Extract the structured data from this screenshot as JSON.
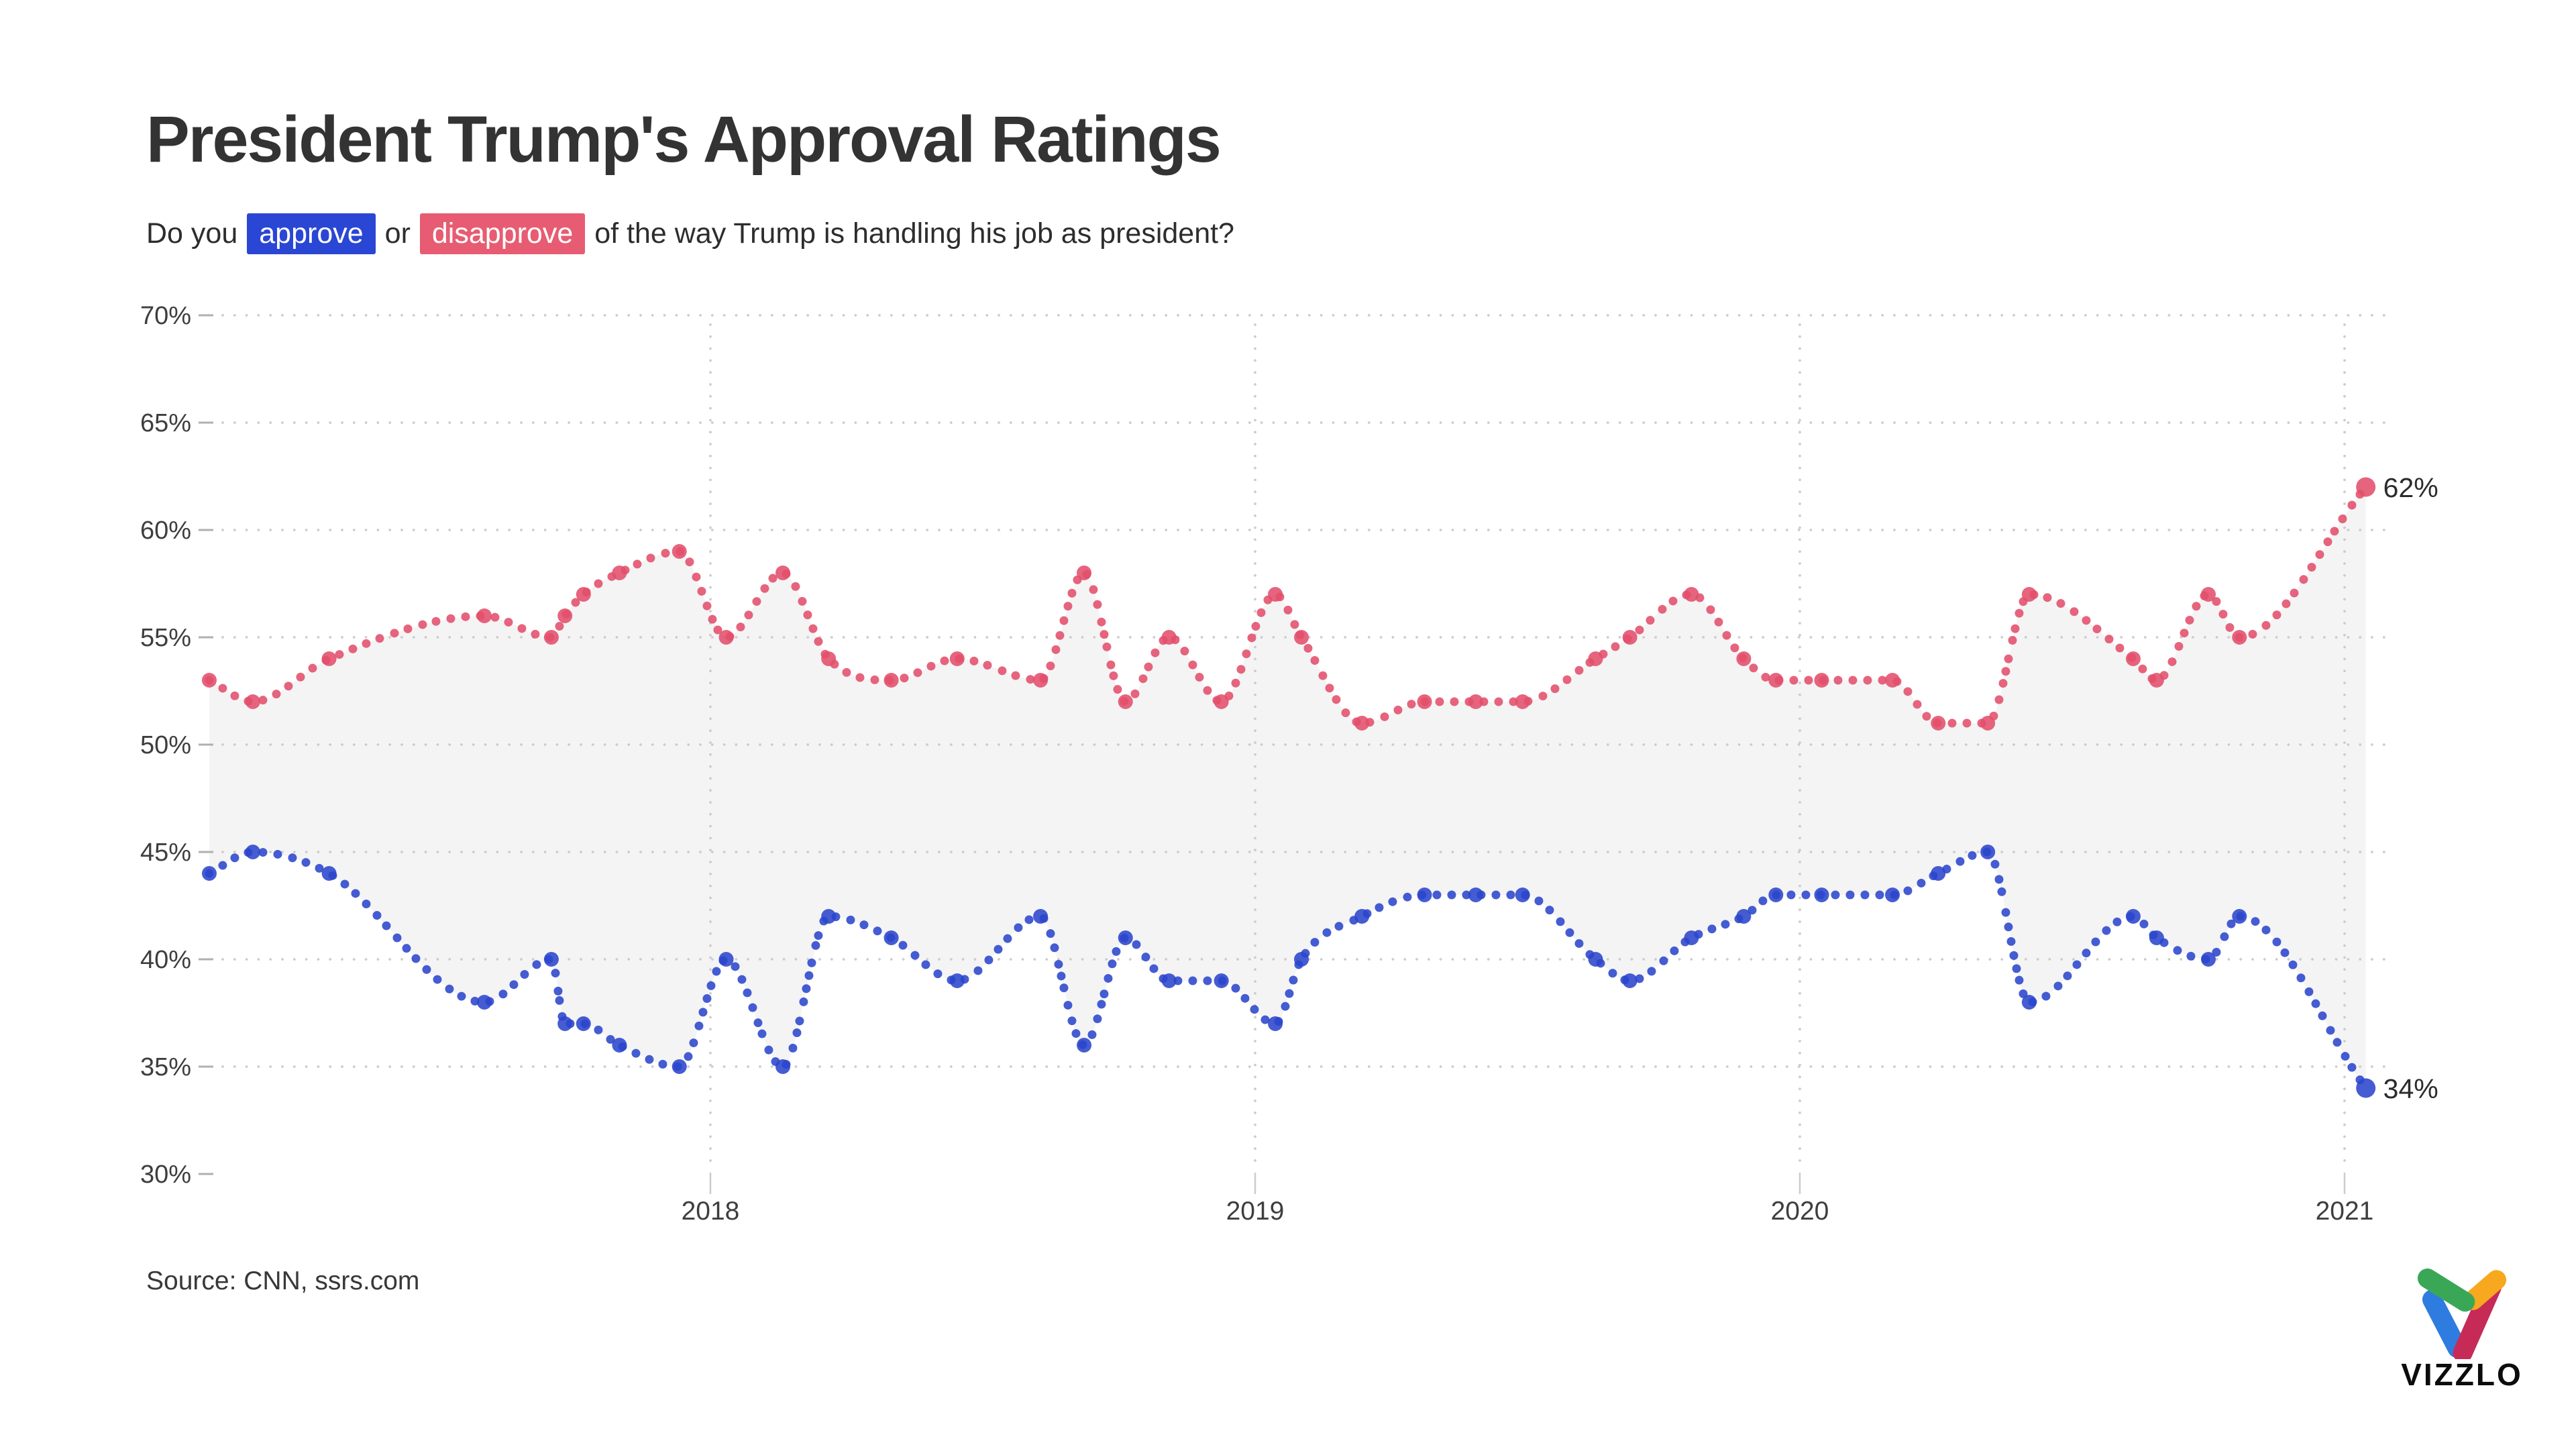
{
  "header": {
    "title": "President Trump's Approval Ratings",
    "subtitle": {
      "prefix": "Do you",
      "approve_word": "approve",
      "middle": "or",
      "disapprove_word": "disapprove",
      "suffix": "of the way Trump is handling his job as president?"
    }
  },
  "colors": {
    "approve": "#2b46cc",
    "disapprove": "#e24e6b",
    "approve_chip_bg": "#2a46d4",
    "disapprove_chip_bg": "#e75c72",
    "band_fill": "#f4f4f5",
    "grid_dot": "#cccccc",
    "tick_dash": "#b0b0b0",
    "axis_text": "#3e3e3e",
    "end_label_text": "#2b2b2b"
  },
  "chart_data": {
    "type": "line",
    "title": "President Trump's Approval Ratings",
    "subtitle": "Do you approve or disapprove of the way Trump is handling his job as president?",
    "style": "dotted-spline with filled band between series; larger dots mark actual polls",
    "x_unit": "decimal year (CNN/SSRS poll dates)",
    "x": [
      2017.08,
      2017.16,
      2017.3,
      2017.585,
      2017.708,
      2017.733,
      2017.767,
      2017.833,
      2017.943,
      2018.029,
      2018.133,
      2018.217,
      2018.332,
      2018.453,
      2018.606,
      2018.686,
      2018.762,
      2018.842,
      2018.938,
      2019.037,
      2019.085,
      2019.196,
      2019.311,
      2019.405,
      2019.491,
      2019.625,
      2019.688,
      2019.801,
      2019.897,
      2019.956,
      2020.04,
      2020.17,
      2020.254,
      2020.345,
      2020.421,
      2020.612,
      2020.655,
      2020.75,
      2020.807,
      2021.039
    ],
    "series": [
      {
        "name": "approve",
        "color": "#2b46cc",
        "values": [
          44,
          45,
          44,
          38,
          40,
          37,
          37,
          36,
          35,
          40,
          35,
          42,
          41,
          39,
          42,
          36,
          41,
          39,
          39,
          37,
          40,
          42,
          43,
          43,
          43,
          40,
          39,
          41,
          42,
          43,
          43,
          43,
          44,
          45,
          38,
          42,
          41,
          40,
          42,
          34
        ]
      },
      {
        "name": "disapprove",
        "color": "#e24e6b",
        "values": [
          53,
          52,
          54,
          56,
          55,
          56,
          57,
          58,
          59,
          55,
          58,
          54,
          53,
          54,
          53,
          58,
          52,
          55,
          52,
          57,
          55,
          51,
          52,
          52,
          52,
          54,
          55,
          57,
          54,
          53,
          53,
          53,
          51,
          51,
          57,
          54,
          53,
          57,
          55,
          62
        ]
      }
    ],
    "x_ticks": [
      "2018",
      "2019",
      "2020",
      "2021"
    ],
    "x_tick_values": [
      2018,
      2019,
      2020,
      2021
    ],
    "y_ticks": [
      "70%",
      "65%",
      "60%",
      "55%",
      "50%",
      "45%",
      "40%",
      "35%",
      "30%"
    ],
    "y_tick_values": [
      70,
      65,
      60,
      55,
      50,
      45,
      40,
      35,
      30
    ],
    "ylim": [
      30,
      70
    ],
    "xlim": [
      2017.0,
      2021.1
    ],
    "grid": "dotted",
    "legend": "none",
    "end_labels": {
      "disapprove": "62%",
      "approve": "34%"
    }
  },
  "footer": {
    "source": "Source: CNN, ssrs.com",
    "logo_text": "VIZZLO"
  },
  "logo_colors": {
    "green": "#3aa757",
    "yellow": "#f7a81f",
    "blue": "#2e7ce0",
    "crimson": "#c62b58"
  }
}
